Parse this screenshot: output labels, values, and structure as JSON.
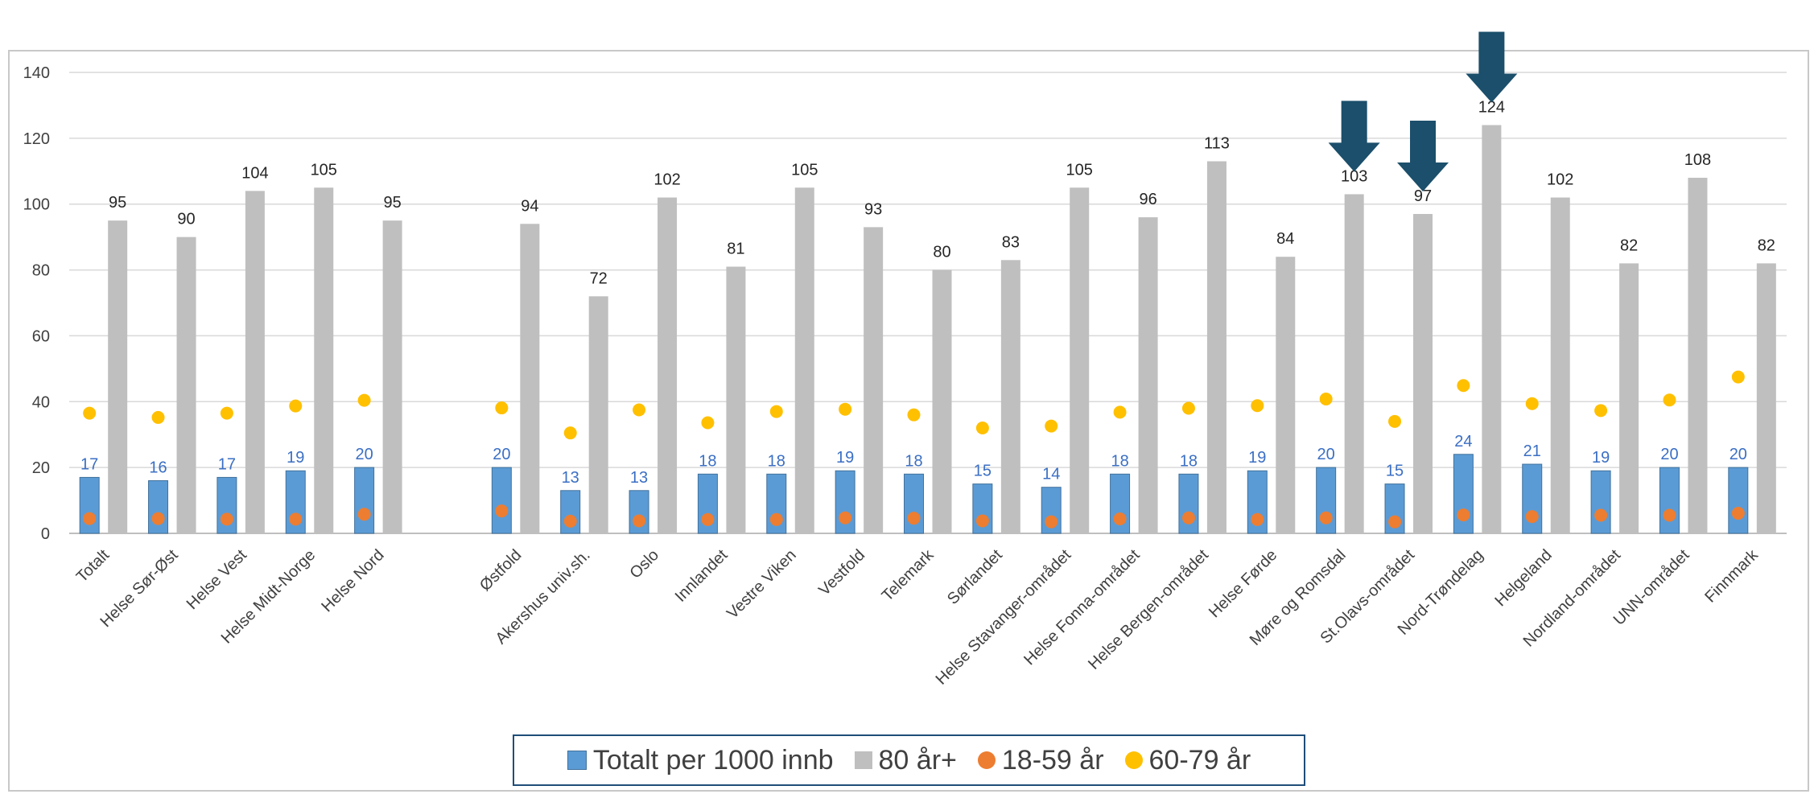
{
  "chart_data": {
    "type": "bar",
    "ylim": [
      0,
      140
    ],
    "yticks": [
      0,
      20,
      40,
      60,
      80,
      100,
      120,
      140
    ],
    "grid": true,
    "legend_position": "bottom",
    "categories": [
      "Totalt",
      "Helse Sør-Øst",
      "Helse Vest",
      "Helse Midt-Norge",
      "Helse Nord",
      "",
      "Østfold",
      "Akershus univ.sh.",
      "Oslo",
      "Innlandet",
      "Vestre Viken",
      "Vestfold",
      "Telemark",
      "Sørlandet",
      "Helse Stavanger-området",
      "Helse Fonna-området",
      "Helse Bergen-området",
      "Helse Førde",
      "Møre og Romsdal",
      "St.Olavs-området",
      "Nord-Trøndelag",
      "Helgeland",
      "Nordland-området",
      "UNN-området",
      "Finnmark"
    ],
    "series": [
      {
        "name": "Totalt per 1000 innb",
        "kind": "bar",
        "color": "#5b9bd5",
        "values": [
          17,
          16,
          17,
          19,
          20,
          null,
          20,
          13,
          13,
          18,
          18,
          19,
          18,
          15,
          14,
          18,
          18,
          19,
          20,
          15,
          24,
          21,
          19,
          20,
          20
        ]
      },
      {
        "name": "80 år+",
        "kind": "bar",
        "color": "#bfbfbf",
        "values": [
          95,
          90,
          104,
          105,
          95,
          null,
          94,
          72,
          102,
          81,
          105,
          93,
          80,
          83,
          105,
          96,
          113,
          84,
          103,
          97,
          124,
          102,
          82,
          108,
          82
        ]
      },
      {
        "name": "18-59 år",
        "kind": "point",
        "color": "#ed7d31",
        "values": [
          4.5,
          4.5,
          4.3,
          4.3,
          5.8,
          null,
          6.8,
          3.7,
          3.8,
          4.2,
          4.2,
          4.7,
          4.6,
          3.8,
          3.5,
          4.4,
          4.7,
          4.2,
          4.7,
          3.5,
          5.6,
          5.1,
          5.5,
          5.5,
          6.1
        ]
      },
      {
        "name": "60-79 år",
        "kind": "point",
        "color": "#ffc000",
        "values": [
          36.5,
          35.2,
          36.5,
          38.7,
          40.4,
          null,
          38.1,
          30.5,
          37.5,
          33.6,
          37,
          37.7,
          36,
          32,
          32.6,
          36.8,
          38,
          38.8,
          40.8,
          34,
          44.9,
          39.4,
          37.3,
          40.5,
          47.5
        ]
      }
    ],
    "annotations": [
      {
        "type": "arrow-down",
        "category": "Møre og Romsdal",
        "color": "#1b4f6b"
      },
      {
        "type": "arrow-down",
        "category": "St.Olavs-området",
        "color": "#1b4f6b"
      },
      {
        "type": "arrow-down",
        "category": "Nord-Trøndelag",
        "color": "#1b4f6b"
      }
    ]
  },
  "legend": {
    "items": [
      {
        "label": "Totalt per 1000 innb",
        "color": "#5b9bd5",
        "shape": "square"
      },
      {
        "label": "80 år+",
        "color": "#bfbfbf",
        "shape": "square"
      },
      {
        "label": "18-59 år",
        "color": "#ed7d31",
        "shape": "circle"
      },
      {
        "label": "60-79 år",
        "color": "#ffc000",
        "shape": "circle"
      }
    ]
  }
}
